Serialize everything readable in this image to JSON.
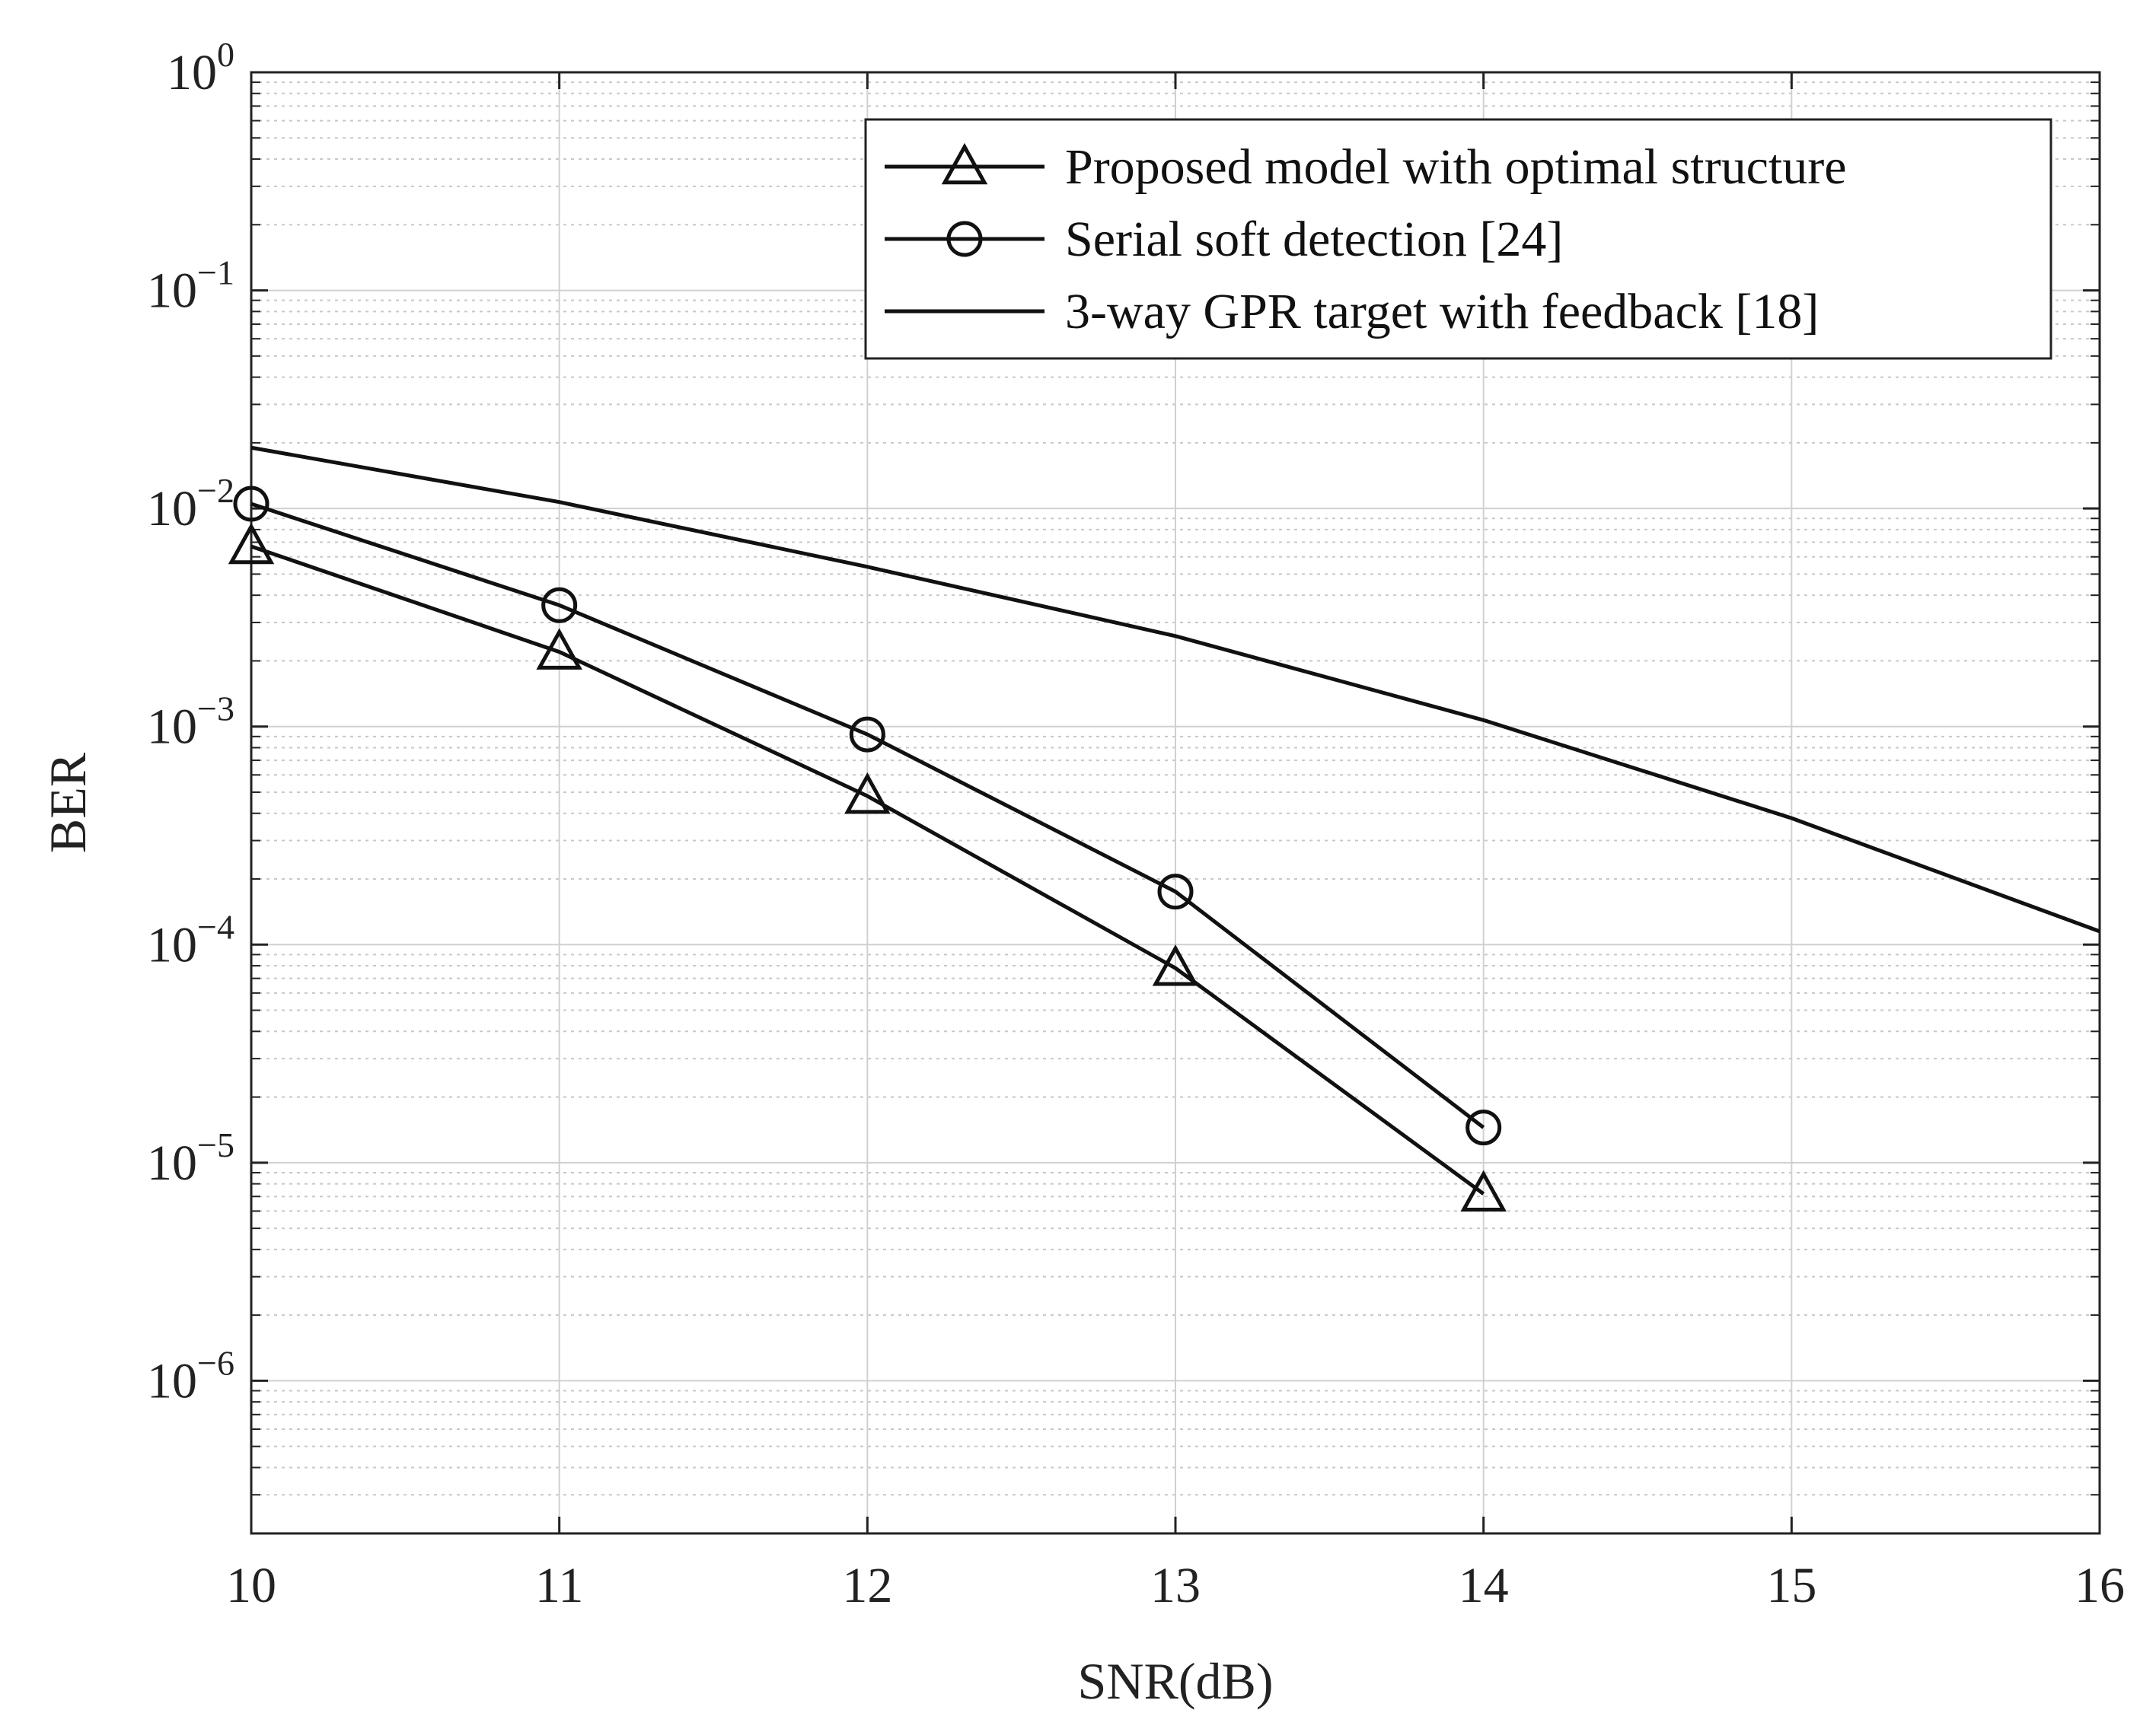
{
  "chart_data": {
    "type": "line",
    "title": "",
    "xlabel": "SNR(dB)",
    "ylabel": "BER",
    "yscale": "log",
    "xlim": [
      10,
      16
    ],
    "ylim_exponents": [
      -6.7,
      0
    ],
    "x_ticks": [
      10,
      11,
      12,
      13,
      14,
      15,
      16
    ],
    "x_tick_labels": [
      "10",
      "11",
      "12",
      "13",
      "14",
      "15",
      "16"
    ],
    "y_ticks": [
      {
        "exp": 0,
        "base": "10",
        "sup": "0"
      },
      {
        "exp": -1,
        "base": "10",
        "sup": "−1"
      },
      {
        "exp": -2,
        "base": "10",
        "sup": "−2"
      },
      {
        "exp": -3,
        "base": "10",
        "sup": "−3"
      },
      {
        "exp": -4,
        "base": "10",
        "sup": "−4"
      },
      {
        "exp": -5,
        "base": "10",
        "sup": "−5"
      },
      {
        "exp": -6,
        "base": "10",
        "sup": "−6"
      }
    ],
    "grid": true,
    "legend_position": "top-right",
    "series": [
      {
        "name": "Proposed model with optimal structure",
        "marker": "triangle",
        "x": [
          10,
          11,
          12,
          13,
          14
        ],
        "y": [
          0.0067,
          0.0022,
          0.00048,
          7.8e-05,
          7.2e-06
        ]
      },
      {
        "name": "Serial soft detection [24]",
        "marker": "circle",
        "x": [
          10,
          11,
          12,
          13,
          14
        ],
        "y": [
          0.0105,
          0.0036,
          0.00092,
          0.000175,
          1.45e-05
        ]
      },
      {
        "name": "3-way GPR target with feedback [18]",
        "marker": "none",
        "x": [
          10,
          11,
          12,
          13,
          14,
          15,
          16
        ],
        "y": [
          0.019,
          0.0107,
          0.0054,
          0.0026,
          0.00107,
          0.00038,
          0.000115
        ]
      }
    ],
    "colors": {
      "line": "#111111",
      "grid_major": "#d0d0d0",
      "grid_minor": "#c8c8c8",
      "axis": "#222222"
    }
  }
}
